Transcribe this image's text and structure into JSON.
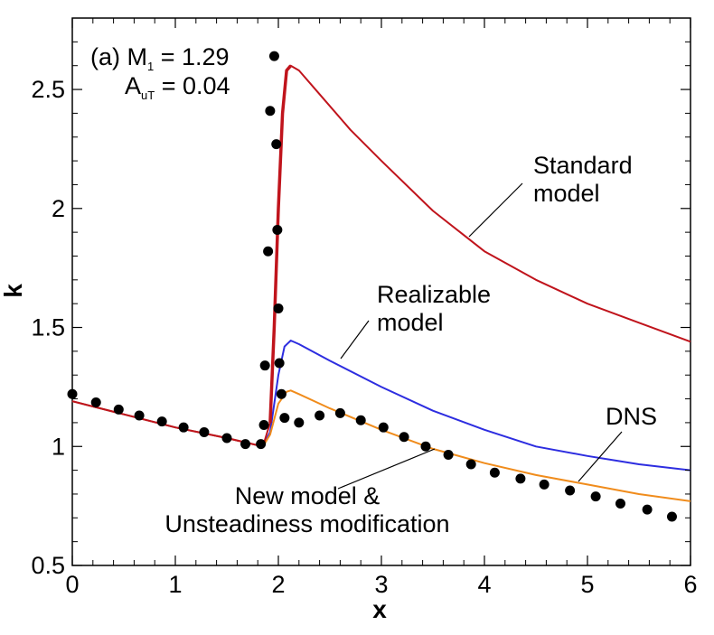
{
  "chart_data": {
    "type": "line",
    "xlabel": "x",
    "ylabel": "k",
    "xlim": [
      0,
      6
    ],
    "ylim": [
      0.5,
      2.8
    ],
    "xticks": [
      "0",
      "1",
      "2",
      "3",
      "4",
      "5",
      "6"
    ],
    "yticks": [
      "0.5",
      "1",
      "1.5",
      "2",
      "2.5"
    ],
    "grid": false,
    "legend": "none",
    "title_annotation": {
      "line1_prefix": "(a) M",
      "line1_sub": "1",
      "line1_suffix": " = 1.29",
      "line2_prefix": "A",
      "line2_sub": "uT",
      "line2_suffix": " = 0.04"
    },
    "series": [
      {
        "name": "Standard model",
        "color": "#c0141c",
        "x": [
          0,
          0.5,
          1.0,
          1.5,
          1.85,
          1.92,
          1.96,
          2.0,
          2.04,
          2.08,
          2.12,
          2.2,
          2.4,
          2.7,
          3.0,
          3.5,
          4.0,
          4.5,
          5.0,
          5.5,
          6.0
        ],
        "y": [
          1.19,
          1.135,
          1.08,
          1.035,
          1.0,
          1.1,
          1.5,
          2.0,
          2.4,
          2.58,
          2.6,
          2.58,
          2.48,
          2.33,
          2.2,
          1.99,
          1.82,
          1.7,
          1.6,
          1.52,
          1.44
        ]
      },
      {
        "name": "Realizable model",
        "color": "#2d2de0",
        "x": [
          0,
          0.5,
          1.0,
          1.5,
          1.85,
          1.92,
          2.0,
          2.06,
          2.12,
          2.2,
          2.5,
          3.0,
          3.5,
          4.0,
          4.5,
          5.0,
          5.5,
          6.0
        ],
        "y": [
          1.19,
          1.135,
          1.08,
          1.035,
          1.0,
          1.06,
          1.3,
          1.42,
          1.445,
          1.43,
          1.36,
          1.25,
          1.15,
          1.07,
          1.0,
          0.96,
          0.925,
          0.9
        ],
        "bold_segment": false
      },
      {
        "name": "New model & Unsteadiness modification",
        "color": "#f08c1c",
        "x": [
          0,
          0.5,
          1.0,
          1.5,
          1.85,
          1.92,
          2.0,
          2.08,
          2.12,
          2.2,
          2.5,
          3.0,
          3.5,
          4.0,
          4.5,
          5.0,
          5.5,
          6.0
        ],
        "y": [
          1.19,
          1.135,
          1.08,
          1.035,
          1.0,
          1.05,
          1.18,
          1.23,
          1.235,
          1.22,
          1.16,
          1.07,
          0.99,
          0.93,
          0.88,
          0.84,
          0.8,
          0.77
        ]
      },
      {
        "name": "DNS",
        "type": "scatter",
        "color": "#000000",
        "x": [
          0.0,
          0.23,
          0.45,
          0.65,
          0.87,
          1.08,
          1.28,
          1.5,
          1.68,
          1.83,
          1.86,
          1.87,
          1.9,
          1.92,
          1.96,
          1.98,
          1.99,
          2.0,
          2.01,
          2.03,
          2.06,
          2.2,
          2.4,
          2.6,
          2.8,
          3.02,
          3.22,
          3.43,
          3.65,
          3.87,
          4.1,
          4.35,
          4.58,
          4.83,
          5.08,
          5.32,
          5.58,
          5.82
        ],
        "y": [
          1.22,
          1.185,
          1.155,
          1.13,
          1.105,
          1.08,
          1.06,
          1.035,
          1.01,
          1.01,
          1.09,
          1.34,
          1.82,
          2.41,
          2.64,
          2.27,
          1.91,
          1.58,
          1.35,
          1.22,
          1.12,
          1.1,
          1.13,
          1.14,
          1.11,
          1.08,
          1.04,
          1.0,
          0.965,
          0.925,
          0.89,
          0.865,
          0.84,
          0.815,
          0.79,
          0.76,
          0.735,
          0.705
        ]
      }
    ],
    "annotations": [
      {
        "lines": [
          "Standard",
          "model"
        ],
        "target_series": "Standard model"
      },
      {
        "lines": [
          "Realizable",
          "model"
        ],
        "target_series": "Realizable model"
      },
      {
        "lines": [
          "DNS"
        ],
        "target_series": "DNS"
      },
      {
        "lines": [
          "New model &",
          "Unsteadiness modification"
        ],
        "target_series": "New model & Unsteadiness modification"
      }
    ]
  }
}
